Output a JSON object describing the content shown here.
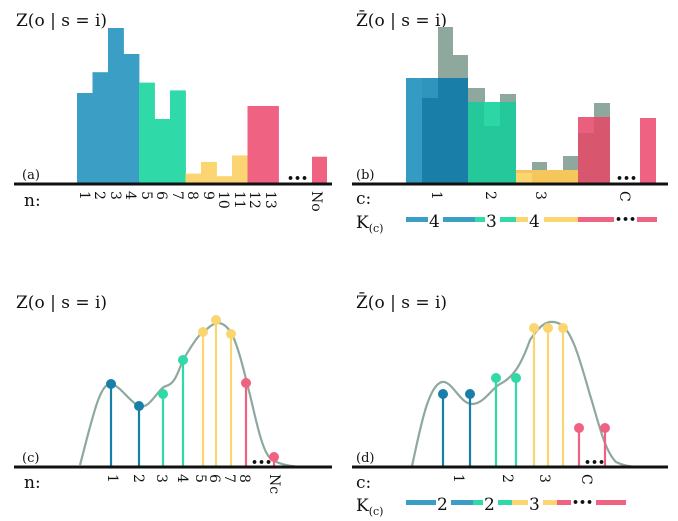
{
  "colors": {
    "blue": "#3a9ec5",
    "blue_dark": "#1a7fa8",
    "teal": "#2fd9a8",
    "yellow": "#fbd571",
    "pink": "#ef6282",
    "gray": "#8fa89e",
    "axis": "#111111"
  },
  "panel_a": {
    "title": "Z(o | s = i)",
    "tag": "(a)",
    "row_label": "n:",
    "ellipsis": "•••",
    "ticks": [
      "1",
      "2",
      "3",
      "4",
      "5",
      "6",
      "7",
      "8",
      "9",
      "10",
      "11",
      "12",
      "13",
      "No"
    ],
    "bins": [
      {
        "v": 3.5,
        "c": "blue"
      },
      {
        "v": 4.3,
        "c": "blue"
      },
      {
        "v": 6.0,
        "c": "blue"
      },
      {
        "v": 5.0,
        "c": "blue"
      },
      {
        "v": 3.9,
        "c": "teal"
      },
      {
        "v": 2.5,
        "c": "teal"
      },
      {
        "v": 3.6,
        "c": "teal"
      },
      {
        "v": 0.4,
        "c": "yellow"
      },
      {
        "v": 0.85,
        "c": "yellow"
      },
      {
        "v": 0.3,
        "c": "yellow"
      },
      {
        "v": 1.1,
        "c": "yellow"
      },
      {
        "v": 3.0,
        "c": "pink"
      },
      {
        "v": 3.0,
        "c": "pink"
      }
    ],
    "last_bin": 1.05
  },
  "panel_b": {
    "title": "Z̄(o | s = i)",
    "tag": "(b)",
    "row_label": "c:",
    "k_label": "K",
    "k_sub": "(c)",
    "ellipsis": "•••",
    "ticks": [
      "1",
      "2",
      "3",
      "C"
    ],
    "k_values": [
      "4",
      "3",
      "4"
    ]
  },
  "panel_c": {
    "title": "Z(o | s = i)",
    "tag": "(c)",
    "row_label": "n:",
    "ellipsis": "•••",
    "ticks": [
      "1",
      "2",
      "3",
      "4",
      "5",
      "6",
      "7",
      "8",
      "Nc"
    ]
  },
  "panel_d": {
    "title": "Z̄(o | s = i)",
    "tag": "(d)",
    "row_label": "c:",
    "k_label": "K",
    "k_sub": "(c)",
    "ellipsis": "•••",
    "ticks": [
      "1",
      "2",
      "3",
      "C"
    ],
    "k_values": [
      "2",
      "2",
      "3"
    ]
  }
}
